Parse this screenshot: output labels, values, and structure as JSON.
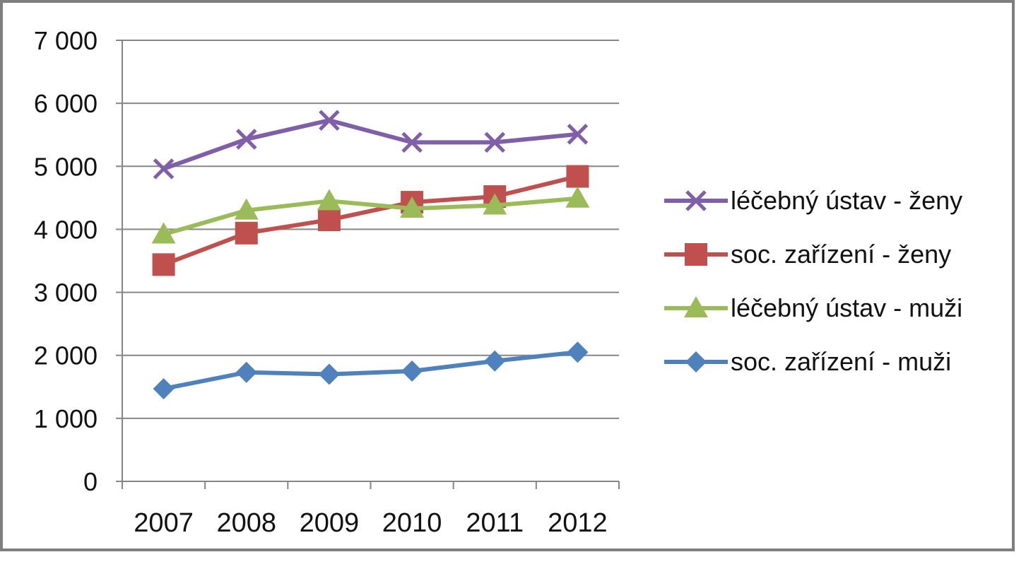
{
  "chart_data": {
    "type": "line",
    "title": "",
    "xlabel": "",
    "ylabel": "",
    "categories": [
      "2007",
      "2008",
      "2009",
      "2010",
      "2011",
      "2012"
    ],
    "ylim": [
      0,
      7000
    ],
    "yticks": [
      0,
      1000,
      2000,
      3000,
      4000,
      5000,
      6000,
      7000
    ],
    "ytick_labels": [
      "0",
      "1 000",
      "2 000",
      "3 000",
      "4 000",
      "5 000",
      "6 000",
      "7 000"
    ],
    "grid": true,
    "legend_position": "right",
    "series": [
      {
        "name": "léčebný ústav - ženy",
        "values": [
          4960,
          5430,
          5730,
          5380,
          5380,
          5510
        ],
        "color": "#7F5FA8",
        "marker": "x"
      },
      {
        "name": "soc. zařízení - ženy",
        "values": [
          3440,
          3940,
          4150,
          4430,
          4520,
          4840
        ],
        "color": "#C0504D",
        "marker": "square"
      },
      {
        "name": "léčebný ústav - muži",
        "values": [
          3920,
          4300,
          4450,
          4330,
          4380,
          4490
        ],
        "color": "#9BBB59",
        "marker": "triangle"
      },
      {
        "name": "soc. zařízení - muži",
        "values": [
          1470,
          1730,
          1700,
          1750,
          1910,
          2050
        ],
        "color": "#4F81BD",
        "marker": "diamond"
      }
    ]
  }
}
